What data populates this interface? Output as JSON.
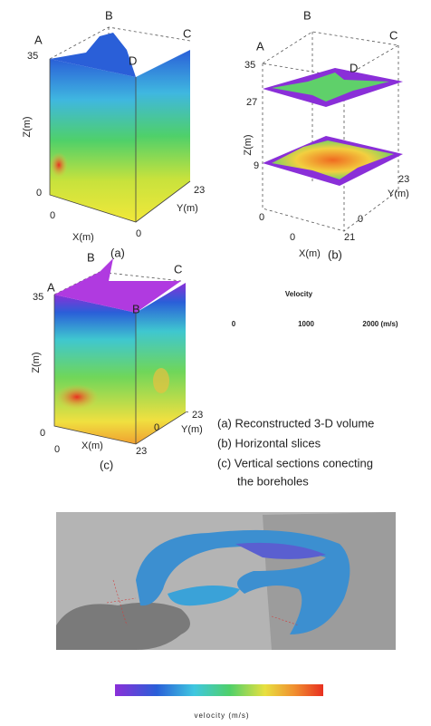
{
  "panels": [
    {
      "label": "(a)",
      "corners": [
        "A",
        "B",
        "C",
        "D"
      ],
      "z_title": "Z(m)",
      "z_ticks": [
        "35",
        "0"
      ],
      "x_title": "X(m)",
      "x_ticks": [
        "0",
        "0"
      ],
      "y_title": "Y(m)",
      "y_ticks": [
        "23"
      ]
    },
    {
      "label": "(b)",
      "corners": [
        "A",
        "B",
        "C",
        "D"
      ],
      "z_title": "Z(m)",
      "z_ticks": [
        "35",
        "27",
        "9",
        "0"
      ],
      "x_title": "X(m)",
      "x_ticks": [
        "0",
        "21"
      ],
      "y_title": "Y(m)",
      "y_ticks": [
        "0",
        "23"
      ]
    },
    {
      "label": "(c)",
      "corners": [
        "A",
        "B",
        "C",
        "B"
      ],
      "z_title": "Z(m)",
      "z_ticks": [
        "35",
        "0"
      ],
      "x_title": "X(m)",
      "x_ticks": [
        "0",
        "23"
      ],
      "y_title": "Y(m)",
      "y_ticks": [
        "0",
        "23"
      ]
    }
  ],
  "velocity_legend": {
    "title": "Velocity",
    "ticks": [
      "0",
      "1000",
      "2000 (m/s)"
    ]
  },
  "captions": [
    "(a) Reconstructed 3-D volume",
    "(b) Horizontal slices",
    "(c) Vertical sections conecting",
    "the boreholes"
  ],
  "colorbar": {
    "title": "velocity (m/s)"
  }
}
